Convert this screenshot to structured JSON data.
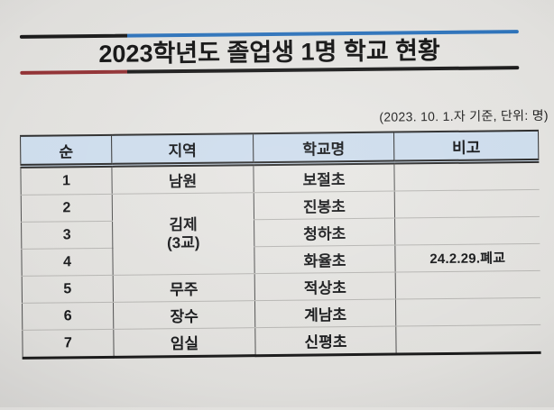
{
  "title": "2023학년도 졸업생 1명 학교 현황",
  "subtitle": "(2023. 10. 1.자 기준, 단위: 명)",
  "colors": {
    "banner_blue": "#2e73ba",
    "banner_red": "#913134",
    "header_bg": "#cddcec",
    "line_dark": "#1b1b1b"
  },
  "table": {
    "headers": [
      "순",
      "지역",
      "학교명",
      "비고"
    ],
    "merged_region": {
      "line1": "김제",
      "line2": "(3교)",
      "spans_rows": "2-4"
    },
    "rows": [
      {
        "no": "1",
        "region": "남원",
        "school": "보절초",
        "note": ""
      },
      {
        "no": "2",
        "region": "김제 (3교)",
        "school": "진봉초",
        "note": ""
      },
      {
        "no": "3",
        "region": "김제 (3교)",
        "school": "청하초",
        "note": ""
      },
      {
        "no": "4",
        "region": "김제 (3교)",
        "school": "화율초",
        "note": "24.2.29.폐교"
      },
      {
        "no": "5",
        "region": "무주",
        "school": "적상초",
        "note": ""
      },
      {
        "no": "6",
        "region": "장수",
        "school": "계남초",
        "note": ""
      },
      {
        "no": "7",
        "region": "임실",
        "school": "신평초",
        "note": ""
      }
    ]
  }
}
